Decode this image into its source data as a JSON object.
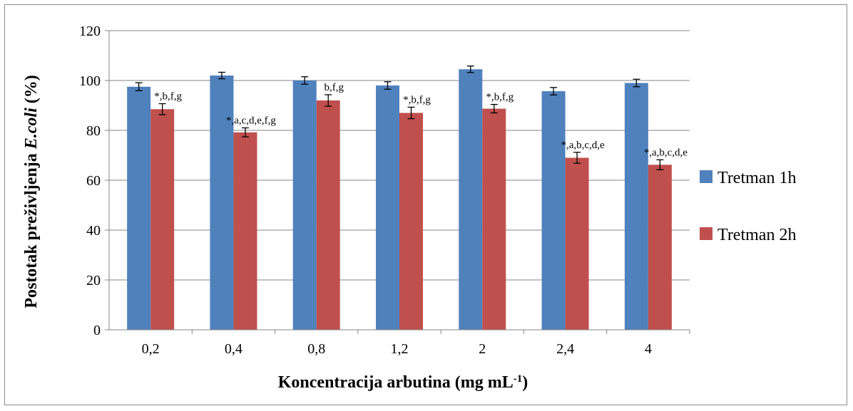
{
  "chart_data": {
    "type": "bar",
    "categories": [
      "0,2",
      "0,4",
      "0,8",
      "1,2",
      "2",
      "2,4",
      "4"
    ],
    "series": [
      {
        "name": "Tretman 1h",
        "color": "#4f81bd",
        "values": [
          97.5,
          102,
          100,
          98,
          104.5,
          95.7,
          99
        ],
        "errors": [
          1.6,
          1.3,
          1.5,
          1.5,
          1.3,
          1.5,
          1.5
        ],
        "annotations": [
          "",
          "",
          "",
          "",
          "",
          "",
          ""
        ]
      },
      {
        "name": "Tretman 2h",
        "color": "#c0504d",
        "values": [
          88.5,
          79.2,
          92,
          87,
          88.7,
          69,
          66.2
        ],
        "errors": [
          2.2,
          1.8,
          2.3,
          2.3,
          1.7,
          2.2,
          2.0
        ],
        "annotations": [
          "*,b,f,g",
          "*,a,c,d,e,f,g",
          "b,f,g",
          "*,b,f,g",
          "*,b,f,g",
          "*,a,b,c,d,e",
          "*,a,b,c,d,e"
        ]
      }
    ],
    "y_ticks": [
      "0",
      "20",
      "40",
      "60",
      "80",
      "100",
      "120"
    ],
    "ylim": [
      0,
      120
    ],
    "ylabel_plain": "Postotak preživljenja ",
    "ylabel_italic": "E.coli",
    "ylabel_tail": " (%)",
    "xlabel_main": "Koncentracija arbutina (mg mL",
    "xlabel_sup": "-1",
    "xlabel_close": ")",
    "grid": "horizontal",
    "legend_position": "right"
  }
}
